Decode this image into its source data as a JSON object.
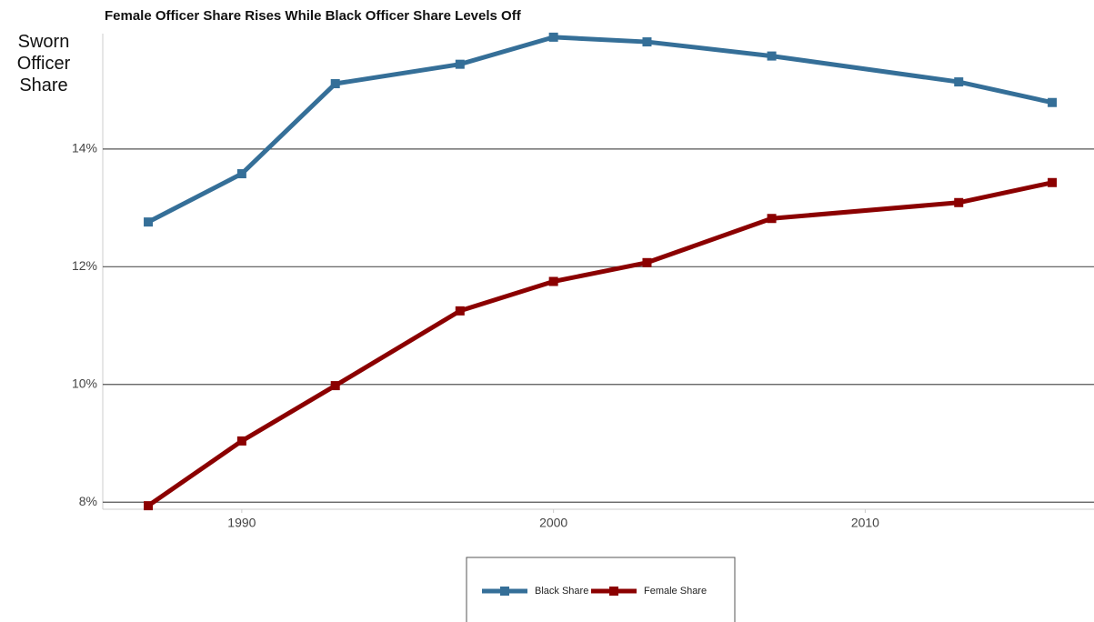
{
  "chart_data": {
    "type": "line",
    "title": "Female Officer Share Rises While Black Officer Share Levels Off",
    "y_label": "Sworn Officer Share",
    "x": [
      1987,
      1990,
      1993,
      1997,
      2000,
      2003,
      2007,
      2013,
      2016
    ],
    "series": [
      {
        "name": "Black Share",
        "color": "#356f98",
        "values": [
          12.76,
          13.58,
          15.11,
          15.44,
          15.9,
          15.82,
          15.58,
          15.14,
          14.79
        ]
      },
      {
        "name": "Female Share",
        "color": "#8b0000",
        "values": [
          7.94,
          9.04,
          9.98,
          11.25,
          11.75,
          12.07,
          12.82,
          13.09,
          13.43
        ]
      }
    ],
    "xlim": [
      1985.54,
      2017.34
    ],
    "xticks": [
      1990,
      2000,
      2010
    ],
    "ylim": [
      7.88,
      15.96
    ],
    "yticks": [
      {
        "value": 8,
        "label": "8%"
      },
      {
        "value": 10,
        "label": "10%"
      },
      {
        "value": 12,
        "label": "12%"
      },
      {
        "value": 14,
        "label": "14%"
      }
    ],
    "grid": true
  }
}
